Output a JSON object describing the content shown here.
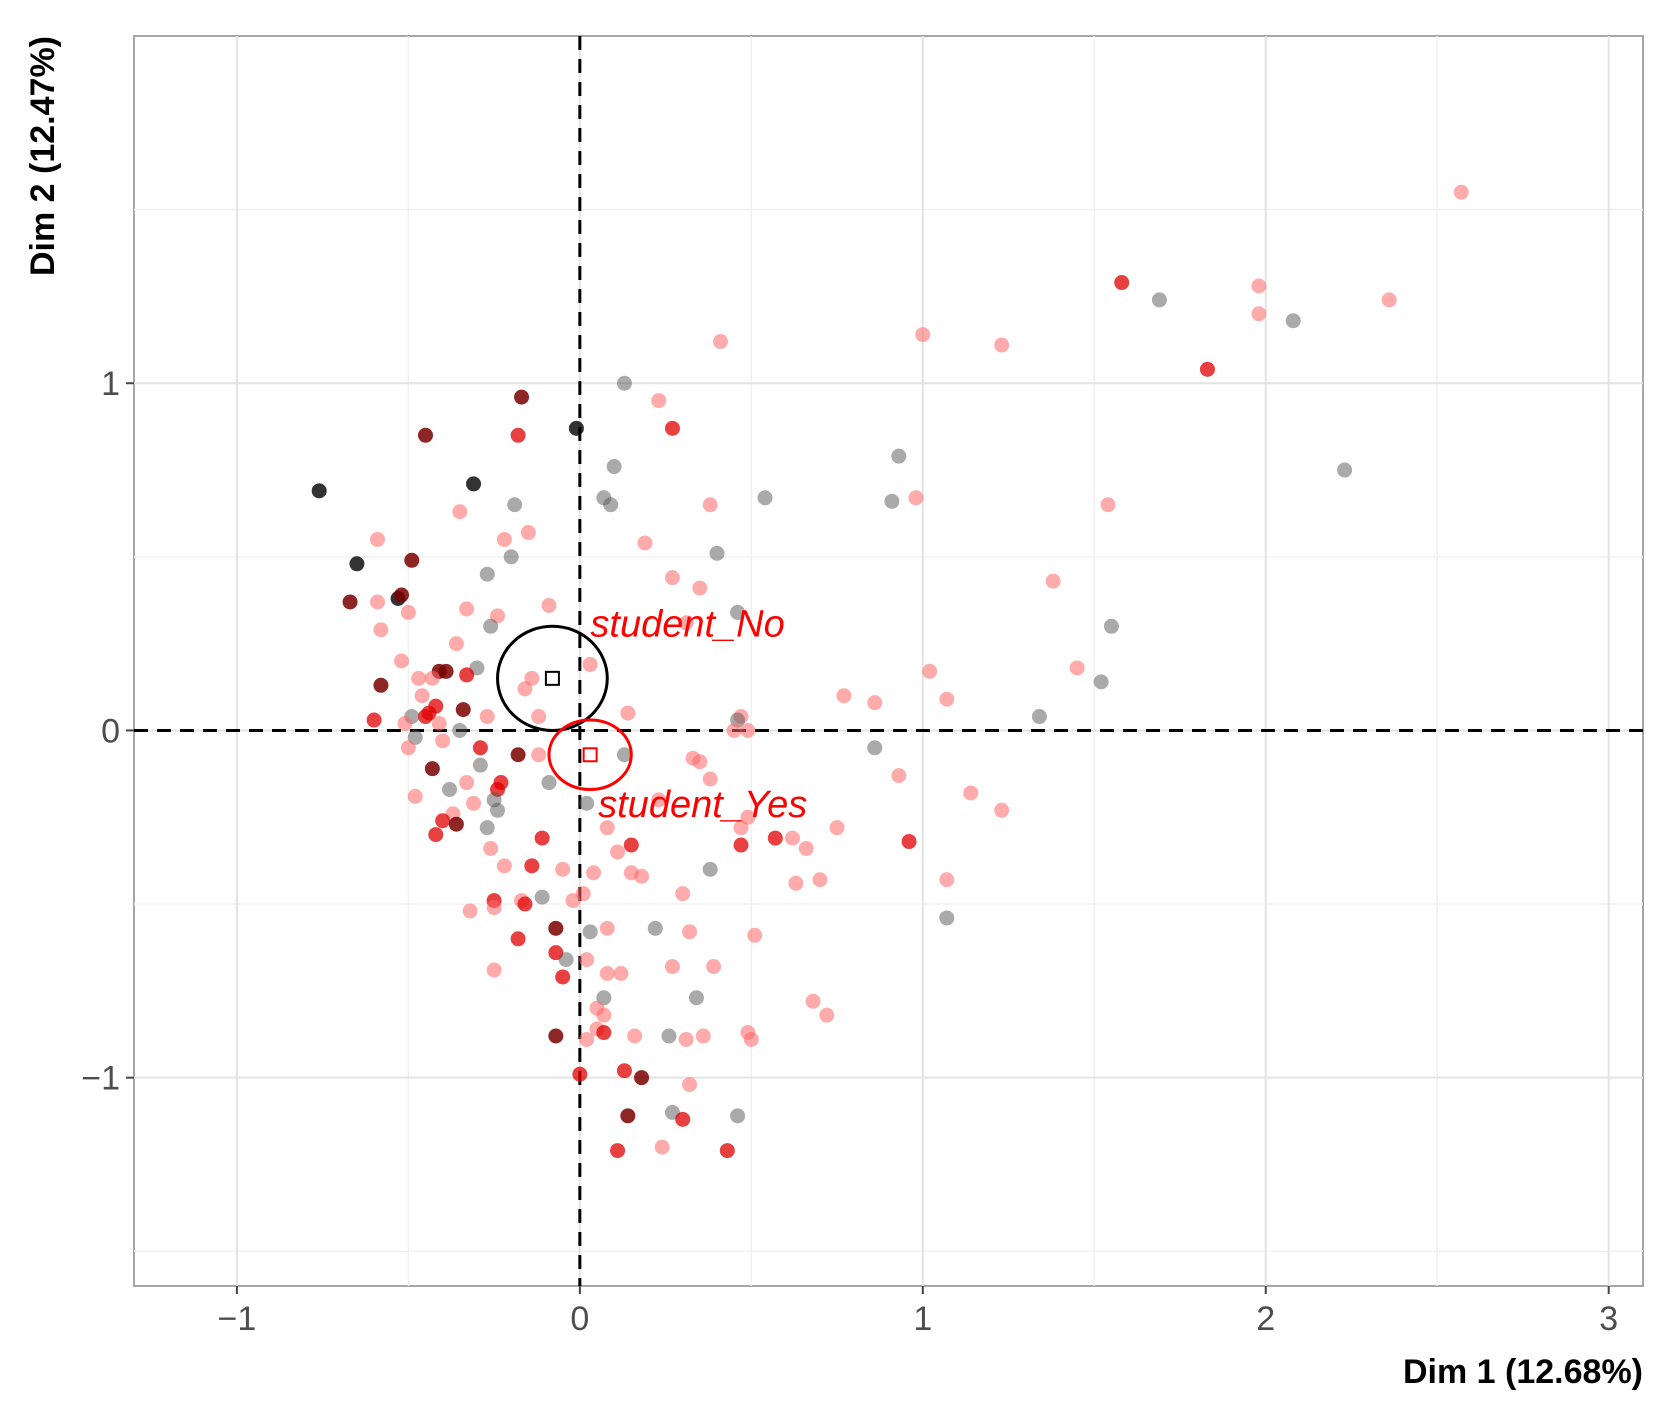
{
  "chart_data": {
    "type": "scatter",
    "xlabel": "Dim 1 (12.68%)",
    "ylabel": "Dim 2 (12.47%)",
    "xlim": [
      -1.3,
      3.1
    ],
    "ylim": [
      -1.6,
      2.0
    ],
    "x_ticks": [
      -1,
      0,
      1,
      2,
      3
    ],
    "x_tick_labels": [
      "−1",
      "0",
      "1",
      "2",
      "3"
    ],
    "y_ticks": [
      -1,
      0,
      1
    ],
    "y_tick_labels": [
      "−1",
      "0",
      "1"
    ],
    "grid": true,
    "colors": {
      "light_red": "#ff6666",
      "red": "#e00000",
      "dark_red": "#7a0000",
      "grey": "#555555",
      "black": "#000000"
    },
    "categories": [
      {
        "label": "student_No",
        "x": -0.08,
        "y": 0.15,
        "ellipse_rx": 0.16,
        "ellipse_ry": 0.15,
        "color": "#000000"
      },
      {
        "label": "student_Yes",
        "x": 0.03,
        "y": -0.07,
        "ellipse_rx": 0.12,
        "ellipse_ry": 0.1,
        "color": "#ff0000"
      }
    ],
    "points": [
      {
        "x": 2.57,
        "y": 1.55,
        "c": "light_red"
      },
      {
        "x": 1.58,
        "y": 1.29,
        "c": "red"
      },
      {
        "x": 1.69,
        "y": 1.24,
        "c": "grey"
      },
      {
        "x": 1.98,
        "y": 1.28,
        "c": "light_red"
      },
      {
        "x": 2.36,
        "y": 1.24,
        "c": "light_red"
      },
      {
        "x": 1.98,
        "y": 1.2,
        "c": "light_red"
      },
      {
        "x": 2.08,
        "y": 1.18,
        "c": "grey"
      },
      {
        "x": 1.0,
        "y": 1.14,
        "c": "light_red"
      },
      {
        "x": 1.23,
        "y": 1.11,
        "c": "light_red"
      },
      {
        "x": 1.83,
        "y": 1.04,
        "c": "red"
      },
      {
        "x": 0.41,
        "y": 1.12,
        "c": "light_red"
      },
      {
        "x": 2.23,
        "y": 0.75,
        "c": "grey"
      },
      {
        "x": 0.93,
        "y": 0.79,
        "c": "grey"
      },
      {
        "x": 0.54,
        "y": 0.67,
        "c": "grey"
      },
      {
        "x": 0.91,
        "y": 0.66,
        "c": "grey"
      },
      {
        "x": 0.98,
        "y": 0.67,
        "c": "light_red"
      },
      {
        "x": 1.54,
        "y": 0.65,
        "c": "light_red"
      },
      {
        "x": 1.38,
        "y": 0.43,
        "c": "light_red"
      },
      {
        "x": 1.55,
        "y": 0.3,
        "c": "grey"
      },
      {
        "x": 1.45,
        "y": 0.18,
        "c": "light_red"
      },
      {
        "x": 1.52,
        "y": 0.14,
        "c": "grey"
      },
      {
        "x": 1.02,
        "y": 0.17,
        "c": "light_red"
      },
      {
        "x": 1.07,
        "y": 0.09,
        "c": "light_red"
      },
      {
        "x": 0.77,
        "y": 0.1,
        "c": "light_red"
      },
      {
        "x": 0.86,
        "y": 0.08,
        "c": "light_red"
      },
      {
        "x": 1.34,
        "y": 0.04,
        "c": "grey"
      },
      {
        "x": 0.86,
        "y": -0.05,
        "c": "grey"
      },
      {
        "x": 0.93,
        "y": -0.13,
        "c": "light_red"
      },
      {
        "x": 1.14,
        "y": -0.18,
        "c": "light_red"
      },
      {
        "x": 1.23,
        "y": -0.23,
        "c": "light_red"
      },
      {
        "x": 0.96,
        "y": -0.32,
        "c": "red"
      },
      {
        "x": 1.07,
        "y": -0.43,
        "c": "light_red"
      },
      {
        "x": 1.07,
        "y": -0.54,
        "c": "grey"
      },
      {
        "x": 0.13,
        "y": 1.0,
        "c": "grey"
      },
      {
        "x": 0.23,
        "y": 0.95,
        "c": "light_red"
      },
      {
        "x": 0.27,
        "y": 0.87,
        "c": "red"
      },
      {
        "x": 0.1,
        "y": 0.76,
        "c": "grey"
      },
      {
        "x": 0.07,
        "y": 0.67,
        "c": "grey"
      },
      {
        "x": 0.09,
        "y": 0.65,
        "c": "grey"
      },
      {
        "x": 0.38,
        "y": 0.65,
        "c": "light_red"
      },
      {
        "x": 0.19,
        "y": 0.54,
        "c": "light_red"
      },
      {
        "x": 0.4,
        "y": 0.51,
        "c": "grey"
      },
      {
        "x": 0.27,
        "y": 0.44,
        "c": "light_red"
      },
      {
        "x": 0.35,
        "y": 0.41,
        "c": "light_red"
      },
      {
        "x": 0.46,
        "y": 0.34,
        "c": "grey"
      },
      {
        "x": 0.31,
        "y": 0.31,
        "c": "light_red"
      },
      {
        "x": 0.03,
        "y": 0.19,
        "c": "light_red"
      },
      {
        "x": 0.14,
        "y": 0.05,
        "c": "light_red"
      },
      {
        "x": 0.47,
        "y": 0.04,
        "c": "light_red"
      },
      {
        "x": 0.46,
        "y": 0.03,
        "c": "grey"
      },
      {
        "x": 0.49,
        "y": 0.0,
        "c": "light_red"
      },
      {
        "x": 0.45,
        "y": 0.0,
        "c": "light_red"
      },
      {
        "x": 0.13,
        "y": -0.07,
        "c": "grey"
      },
      {
        "x": 0.35,
        "y": -0.09,
        "c": "light_red"
      },
      {
        "x": 0.33,
        "y": -0.08,
        "c": "light_red"
      },
      {
        "x": 0.38,
        "y": -0.14,
        "c": "light_red"
      },
      {
        "x": 0.23,
        "y": -0.2,
        "c": "light_red"
      },
      {
        "x": 0.02,
        "y": -0.21,
        "c": "grey"
      },
      {
        "x": 0.08,
        "y": -0.28,
        "c": "light_red"
      },
      {
        "x": 0.47,
        "y": -0.28,
        "c": "light_red"
      },
      {
        "x": 0.49,
        "y": -0.25,
        "c": "light_red"
      },
      {
        "x": 0.57,
        "y": -0.31,
        "c": "red"
      },
      {
        "x": 0.62,
        "y": -0.31,
        "c": "light_red"
      },
      {
        "x": 0.66,
        "y": -0.34,
        "c": "light_red"
      },
      {
        "x": 0.75,
        "y": -0.28,
        "c": "light_red"
      },
      {
        "x": 0.47,
        "y": -0.33,
        "c": "red"
      },
      {
        "x": 0.15,
        "y": -0.33,
        "c": "red"
      },
      {
        "x": 0.11,
        "y": -0.35,
        "c": "light_red"
      },
      {
        "x": 0.04,
        "y": -0.41,
        "c": "light_red"
      },
      {
        "x": 0.15,
        "y": -0.41,
        "c": "light_red"
      },
      {
        "x": 0.18,
        "y": -0.42,
        "c": "light_red"
      },
      {
        "x": 0.38,
        "y": -0.4,
        "c": "grey"
      },
      {
        "x": 0.63,
        "y": -0.44,
        "c": "light_red"
      },
      {
        "x": 0.7,
        "y": -0.43,
        "c": "light_red"
      },
      {
        "x": 0.3,
        "y": -0.47,
        "c": "light_red"
      },
      {
        "x": 0.01,
        "y": -0.47,
        "c": "light_red"
      },
      {
        "x": 0.22,
        "y": -0.57,
        "c": "grey"
      },
      {
        "x": 0.32,
        "y": -0.58,
        "c": "light_red"
      },
      {
        "x": 0.51,
        "y": -0.59,
        "c": "light_red"
      },
      {
        "x": 0.08,
        "y": -0.57,
        "c": "light_red"
      },
      {
        "x": 0.03,
        "y": -0.58,
        "c": "grey"
      },
      {
        "x": 0.02,
        "y": -0.66,
        "c": "light_red"
      },
      {
        "x": 0.27,
        "y": -0.68,
        "c": "light_red"
      },
      {
        "x": 0.39,
        "y": -0.68,
        "c": "light_red"
      },
      {
        "x": 0.08,
        "y": -0.7,
        "c": "light_red"
      },
      {
        "x": 0.12,
        "y": -0.7,
        "c": "light_red"
      },
      {
        "x": 0.07,
        "y": -0.77,
        "c": "grey"
      },
      {
        "x": 0.34,
        "y": -0.77,
        "c": "grey"
      },
      {
        "x": 0.05,
        "y": -0.8,
        "c": "light_red"
      },
      {
        "x": 0.07,
        "y": -0.82,
        "c": "light_red"
      },
      {
        "x": 0.05,
        "y": -0.86,
        "c": "light_red"
      },
      {
        "x": 0.07,
        "y": -0.87,
        "c": "red"
      },
      {
        "x": 0.02,
        "y": -0.89,
        "c": "light_red"
      },
      {
        "x": 0.16,
        "y": -0.88,
        "c": "light_red"
      },
      {
        "x": 0.26,
        "y": -0.88,
        "c": "grey"
      },
      {
        "x": 0.31,
        "y": -0.89,
        "c": "light_red"
      },
      {
        "x": 0.36,
        "y": -0.88,
        "c": "light_red"
      },
      {
        "x": 0.49,
        "y": -0.87,
        "c": "light_red"
      },
      {
        "x": 0.5,
        "y": -0.89,
        "c": "light_red"
      },
      {
        "x": 0.68,
        "y": -0.78,
        "c": "light_red"
      },
      {
        "x": 0.72,
        "y": -0.82,
        "c": "light_red"
      },
      {
        "x": 0.13,
        "y": -0.98,
        "c": "red"
      },
      {
        "x": 0.18,
        "y": -1.0,
        "c": "dark_red"
      },
      {
        "x": 0.32,
        "y": -1.02,
        "c": "light_red"
      },
      {
        "x": 0.0,
        "y": -0.99,
        "c": "red"
      },
      {
        "x": 0.14,
        "y": -1.11,
        "c": "dark_red"
      },
      {
        "x": 0.27,
        "y": -1.1,
        "c": "grey"
      },
      {
        "x": 0.3,
        "y": -1.12,
        "c": "red"
      },
      {
        "x": 0.46,
        "y": -1.11,
        "c": "grey"
      },
      {
        "x": 0.24,
        "y": -1.2,
        "c": "light_red"
      },
      {
        "x": 0.11,
        "y": -1.21,
        "c": "red"
      },
      {
        "x": 0.43,
        "y": -1.21,
        "c": "red"
      },
      {
        "x": -0.17,
        "y": 0.96,
        "c": "dark_red"
      },
      {
        "x": -0.18,
        "y": 0.85,
        "c": "red"
      },
      {
        "x": -0.45,
        "y": 0.85,
        "c": "dark_red"
      },
      {
        "x": -0.01,
        "y": 0.87,
        "c": "black"
      },
      {
        "x": -0.76,
        "y": 0.69,
        "c": "black"
      },
      {
        "x": -0.31,
        "y": 0.71,
        "c": "black"
      },
      {
        "x": -0.19,
        "y": 0.65,
        "c": "grey"
      },
      {
        "x": -0.35,
        "y": 0.63,
        "c": "light_red"
      },
      {
        "x": -0.59,
        "y": 0.55,
        "c": "light_red"
      },
      {
        "x": -0.22,
        "y": 0.55,
        "c": "light_red"
      },
      {
        "x": -0.15,
        "y": 0.57,
        "c": "light_red"
      },
      {
        "x": -0.2,
        "y": 0.5,
        "c": "grey"
      },
      {
        "x": -0.65,
        "y": 0.48,
        "c": "black"
      },
      {
        "x": -0.49,
        "y": 0.49,
        "c": "dark_red"
      },
      {
        "x": -0.27,
        "y": 0.45,
        "c": "grey"
      },
      {
        "x": -0.67,
        "y": 0.37,
        "c": "dark_red"
      },
      {
        "x": -0.59,
        "y": 0.37,
        "c": "light_red"
      },
      {
        "x": -0.53,
        "y": 0.38,
        "c": "black"
      },
      {
        "x": -0.52,
        "y": 0.39,
        "c": "dark_red"
      },
      {
        "x": -0.33,
        "y": 0.35,
        "c": "light_red"
      },
      {
        "x": -0.24,
        "y": 0.33,
        "c": "light_red"
      },
      {
        "x": -0.09,
        "y": 0.36,
        "c": "light_red"
      },
      {
        "x": -0.5,
        "y": 0.34,
        "c": "light_red"
      },
      {
        "x": -0.58,
        "y": 0.29,
        "c": "light_red"
      },
      {
        "x": -0.26,
        "y": 0.3,
        "c": "grey"
      },
      {
        "x": -0.36,
        "y": 0.25,
        "c": "light_red"
      },
      {
        "x": -0.52,
        "y": 0.2,
        "c": "light_red"
      },
      {
        "x": -0.41,
        "y": 0.17,
        "c": "dark_red"
      },
      {
        "x": -0.39,
        "y": 0.17,
        "c": "dark_red"
      },
      {
        "x": -0.3,
        "y": 0.18,
        "c": "grey"
      },
      {
        "x": -0.33,
        "y": 0.16,
        "c": "red"
      },
      {
        "x": -0.47,
        "y": 0.15,
        "c": "light_red"
      },
      {
        "x": -0.43,
        "y": 0.15,
        "c": "light_red"
      },
      {
        "x": -0.14,
        "y": 0.15,
        "c": "light_red"
      },
      {
        "x": -0.16,
        "y": 0.12,
        "c": "light_red"
      },
      {
        "x": -0.58,
        "y": 0.13,
        "c": "dark_red"
      },
      {
        "x": -0.46,
        "y": 0.1,
        "c": "light_red"
      },
      {
        "x": -0.42,
        "y": 0.07,
        "c": "red"
      },
      {
        "x": -0.34,
        "y": 0.06,
        "c": "dark_red"
      },
      {
        "x": -0.49,
        "y": 0.04,
        "c": "grey"
      },
      {
        "x": -0.45,
        "y": 0.04,
        "c": "red"
      },
      {
        "x": -0.44,
        "y": 0.05,
        "c": "red"
      },
      {
        "x": -0.27,
        "y": 0.04,
        "c": "light_red"
      },
      {
        "x": -0.12,
        "y": 0.04,
        "c": "light_red"
      },
      {
        "x": -0.6,
        "y": 0.03,
        "c": "red"
      },
      {
        "x": -0.51,
        "y": 0.02,
        "c": "light_red"
      },
      {
        "x": -0.41,
        "y": 0.02,
        "c": "light_red"
      },
      {
        "x": -0.35,
        "y": 0.0,
        "c": "grey"
      },
      {
        "x": -0.48,
        "y": -0.02,
        "c": "grey"
      },
      {
        "x": -0.4,
        "y": -0.03,
        "c": "light_red"
      },
      {
        "x": -0.5,
        "y": -0.05,
        "c": "light_red"
      },
      {
        "x": -0.29,
        "y": -0.05,
        "c": "red"
      },
      {
        "x": -0.18,
        "y": -0.07,
        "c": "dark_red"
      },
      {
        "x": -0.12,
        "y": -0.07,
        "c": "light_red"
      },
      {
        "x": -0.29,
        "y": -0.1,
        "c": "grey"
      },
      {
        "x": -0.43,
        "y": -0.11,
        "c": "dark_red"
      },
      {
        "x": -0.33,
        "y": -0.15,
        "c": "light_red"
      },
      {
        "x": -0.23,
        "y": -0.15,
        "c": "red"
      },
      {
        "x": -0.09,
        "y": -0.15,
        "c": "grey"
      },
      {
        "x": -0.38,
        "y": -0.17,
        "c": "grey"
      },
      {
        "x": -0.48,
        "y": -0.19,
        "c": "light_red"
      },
      {
        "x": -0.24,
        "y": -0.17,
        "c": "red"
      },
      {
        "x": -0.25,
        "y": -0.2,
        "c": "grey"
      },
      {
        "x": -0.31,
        "y": -0.21,
        "c": "light_red"
      },
      {
        "x": -0.24,
        "y": -0.23,
        "c": "grey"
      },
      {
        "x": -0.37,
        "y": -0.24,
        "c": "light_red"
      },
      {
        "x": -0.4,
        "y": -0.26,
        "c": "red"
      },
      {
        "x": -0.36,
        "y": -0.27,
        "c": "dark_red"
      },
      {
        "x": -0.27,
        "y": -0.28,
        "c": "grey"
      },
      {
        "x": -0.42,
        "y": -0.3,
        "c": "red"
      },
      {
        "x": -0.11,
        "y": -0.31,
        "c": "red"
      },
      {
        "x": -0.26,
        "y": -0.34,
        "c": "light_red"
      },
      {
        "x": -0.22,
        "y": -0.39,
        "c": "light_red"
      },
      {
        "x": -0.14,
        "y": -0.39,
        "c": "red"
      },
      {
        "x": -0.05,
        "y": -0.4,
        "c": "light_red"
      },
      {
        "x": -0.11,
        "y": -0.48,
        "c": "grey"
      },
      {
        "x": -0.25,
        "y": -0.49,
        "c": "red"
      },
      {
        "x": -0.17,
        "y": -0.49,
        "c": "light_red"
      },
      {
        "x": -0.16,
        "y": -0.5,
        "c": "red"
      },
      {
        "x": -0.25,
        "y": -0.51,
        "c": "light_red"
      },
      {
        "x": -0.32,
        "y": -0.52,
        "c": "light_red"
      },
      {
        "x": -0.02,
        "y": -0.49,
        "c": "light_red"
      },
      {
        "x": -0.07,
        "y": -0.57,
        "c": "dark_red"
      },
      {
        "x": -0.18,
        "y": -0.6,
        "c": "red"
      },
      {
        "x": -0.07,
        "y": -0.64,
        "c": "red"
      },
      {
        "x": -0.04,
        "y": -0.66,
        "c": "grey"
      },
      {
        "x": -0.25,
        "y": -0.69,
        "c": "light_red"
      },
      {
        "x": -0.05,
        "y": -0.71,
        "c": "red"
      },
      {
        "x": -0.07,
        "y": -0.88,
        "c": "dark_red"
      }
    ]
  }
}
